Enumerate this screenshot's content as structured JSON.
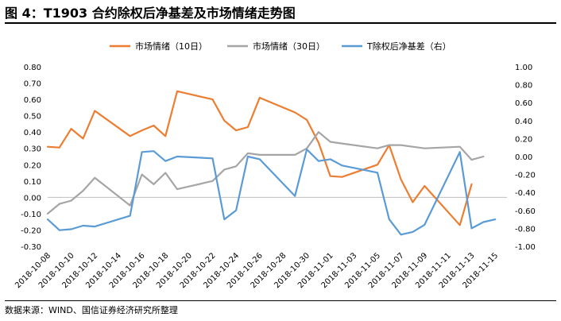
{
  "figure": {
    "title": "图 4：T1903 合约除权后净基差及市场情绪走势图",
    "source": "数据来源：WIND、国信证券经济研究所整理"
  },
  "chart_data": {
    "type": "line",
    "grid": false,
    "legend_position": "top",
    "x": [
      "2018-10-08",
      "2018-10-09",
      "2018-10-10",
      "2018-10-11",
      "2018-10-12",
      "2018-10-15",
      "2018-10-16",
      "2018-10-17",
      "2018-10-18",
      "2018-10-19",
      "2018-10-22",
      "2018-10-23",
      "2018-10-24",
      "2018-10-25",
      "2018-10-26",
      "2018-10-29",
      "2018-10-30",
      "2018-10-31",
      "2018-11-01",
      "2018-11-02",
      "2018-11-05",
      "2018-11-06",
      "2018-11-07",
      "2018-11-08",
      "2018-11-09",
      "2018-11-12",
      "2018-11-13",
      "2018-11-14",
      "2018-11-15",
      "2018-11-16"
    ],
    "x_ticks": [
      "2018-10-08",
      "2018-10-10",
      "2018-10-12",
      "2018-10-14",
      "2018-10-16",
      "2018-10-18",
      "2018-10-20",
      "2018-10-22",
      "2018-10-24",
      "2018-10-26",
      "2018-10-28",
      "2018-10-30",
      "2018-11-01",
      "2018-11-03",
      "2018-11-05",
      "2018-11-07",
      "2018-11-09",
      "2018-11-11",
      "2018-11-13",
      "2018-11-15"
    ],
    "y_left": {
      "ticks": [
        "0.80",
        "0.70",
        "0.60",
        "0.50",
        "0.40",
        "0.30",
        "0.20",
        "0.10",
        "0.00",
        "-0.10",
        "-0.20",
        "-0.30"
      ],
      "min": -0.3,
      "max": 0.8
    },
    "y_right": {
      "ticks": [
        "1.00",
        "0.80",
        "0.60",
        "0.40",
        "0.20",
        "0.00",
        "-0.20",
        "-0.40",
        "-0.60",
        "-0.80",
        "-1.00"
      ],
      "min": -1.0,
      "max": 1.0
    },
    "series": [
      {
        "name": "市场情绪（10日）",
        "axis": "left",
        "color": "#ED7D31",
        "values": [
          0.31,
          0.305,
          0.42,
          0.36,
          0.53,
          0.375,
          0.41,
          0.44,
          0.375,
          0.65,
          0.6,
          0.47,
          0.41,
          0.43,
          0.61,
          0.52,
          0.475,
          0.335,
          0.13,
          0.125,
          0.2,
          0.32,
          0.11,
          -0.03,
          0.07,
          -0.17,
          0.08,
          null,
          null,
          null
        ]
      },
      {
        "name": "市场情绪（30日）",
        "axis": "left",
        "color": "#A5A5A5",
        "values": [
          -0.1,
          -0.04,
          -0.02,
          0.04,
          0.12,
          -0.05,
          0.14,
          0.08,
          0.15,
          0.05,
          0.1,
          0.17,
          0.19,
          0.27,
          0.26,
          0.26,
          0.3,
          0.4,
          0.34,
          0.33,
          0.3,
          0.32,
          0.32,
          0.31,
          0.3,
          0.31,
          0.23,
          0.25,
          null,
          null
        ]
      },
      {
        "name": "T除权后净基差（右）",
        "axis": "right",
        "color": "#5B9BD5",
        "values": [
          -0.7,
          -0.82,
          -0.81,
          -0.77,
          -0.78,
          -0.66,
          0.05,
          0.06,
          -0.05,
          0.0,
          -0.02,
          -0.7,
          -0.6,
          0.0,
          -0.03,
          -0.44,
          0.08,
          -0.05,
          -0.03,
          -0.1,
          -0.18,
          -0.7,
          -0.87,
          -0.84,
          -0.76,
          0.05,
          -0.8,
          -0.73,
          -0.7,
          null
        ]
      }
    ]
  }
}
